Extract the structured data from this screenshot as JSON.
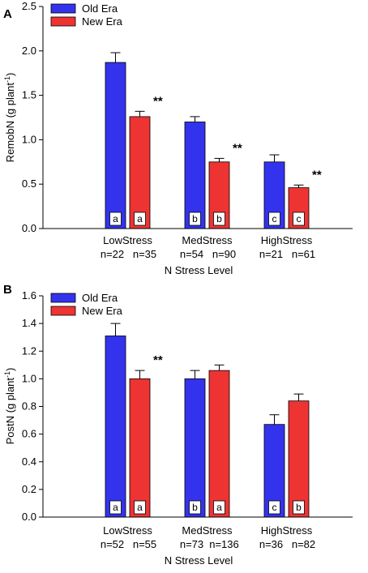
{
  "colors": {
    "old": "#3333ee",
    "new": "#ee3333",
    "axis": "#000000"
  },
  "chart_data": [
    {
      "type": "bar",
      "panel": "A",
      "ylabel": "RemobN (g plant",
      "ylabel_sup": "-1",
      "ylabel_end": ")",
      "xlabel": "N Stress Level",
      "ylim": [
        0,
        2.5
      ],
      "yticks": [
        "0.0",
        "0.5",
        "1.0",
        "1.5",
        "2.0",
        "2.5"
      ],
      "categories": [
        "LowStress",
        "MedStress",
        "HighStress"
      ],
      "n_labels": [
        [
          "n=22",
          "n=35"
        ],
        [
          "n=54",
          "n=90"
        ],
        [
          "n=21",
          "n=61"
        ]
      ],
      "series": [
        {
          "name": "Old Era",
          "values": [
            1.87,
            1.2,
            0.75
          ],
          "errors": [
            0.11,
            0.06,
            0.08
          ],
          "letters": [
            "a",
            "b",
            "c"
          ]
        },
        {
          "name": "New Era",
          "values": [
            1.26,
            0.75,
            0.46
          ],
          "errors": [
            0.06,
            0.04,
            0.03
          ],
          "letters": [
            "a",
            "b",
            "c"
          ]
        }
      ],
      "significance": [
        "**",
        "**",
        "**"
      ]
    },
    {
      "type": "bar",
      "panel": "B",
      "ylabel": "PostN (g plant",
      "ylabel_sup": "-1",
      "ylabel_end": ")",
      "xlabel": "N Stress Level",
      "ylim": [
        0,
        1.6
      ],
      "yticks": [
        "0.0",
        "0.2",
        "0.4",
        "0.6",
        "0.8",
        "1.0",
        "1.2",
        "1.4",
        "1.6"
      ],
      "categories": [
        "LowStress",
        "MedStress",
        "HighStress"
      ],
      "n_labels": [
        [
          "n=52",
          "n=55"
        ],
        [
          "n=73",
          "n=136"
        ],
        [
          "n=36",
          "n=82"
        ]
      ],
      "series": [
        {
          "name": "Old Era",
          "values": [
            1.31,
            1.0,
            0.67
          ],
          "errors": [
            0.09,
            0.06,
            0.07
          ],
          "letters": [
            "a",
            "b",
            "c"
          ]
        },
        {
          "name": "New Era",
          "values": [
            1.0,
            1.06,
            0.84
          ],
          "errors": [
            0.06,
            0.04,
            0.05
          ],
          "letters": [
            "a",
            "a",
            "b"
          ]
        }
      ],
      "significance": [
        "**",
        "",
        ""
      ]
    }
  ]
}
